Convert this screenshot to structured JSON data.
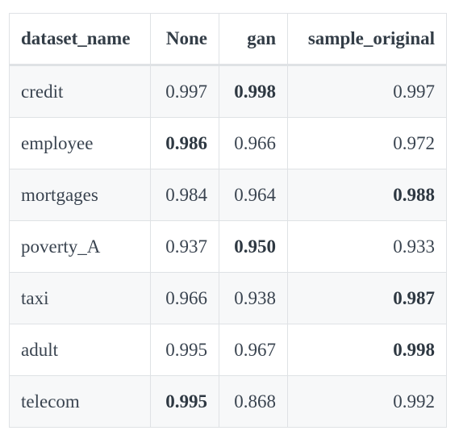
{
  "table": {
    "headers": [
      "dataset_name",
      "None",
      "gan",
      "sample_original"
    ],
    "rows": [
      {
        "dataset_name": "credit",
        "none": "0.997",
        "gan": "0.998",
        "sample_original": "0.997",
        "best": "gan"
      },
      {
        "dataset_name": "employee",
        "none": "0.986",
        "gan": "0.966",
        "sample_original": "0.972",
        "best": "none"
      },
      {
        "dataset_name": "mortgages",
        "none": "0.984",
        "gan": "0.964",
        "sample_original": "0.988",
        "best": "sample_original"
      },
      {
        "dataset_name": "poverty_A",
        "none": "0.937",
        "gan": "0.950",
        "sample_original": "0.933",
        "best": "gan"
      },
      {
        "dataset_name": "taxi",
        "none": "0.966",
        "gan": "0.938",
        "sample_original": "0.987",
        "best": "sample_original"
      },
      {
        "dataset_name": "adult",
        "none": "0.995",
        "gan": "0.967",
        "sample_original": "0.998",
        "best": "sample_original"
      },
      {
        "dataset_name": "telecom",
        "none": "0.995",
        "gan": "0.868",
        "sample_original": "0.992",
        "best": "none"
      }
    ]
  }
}
